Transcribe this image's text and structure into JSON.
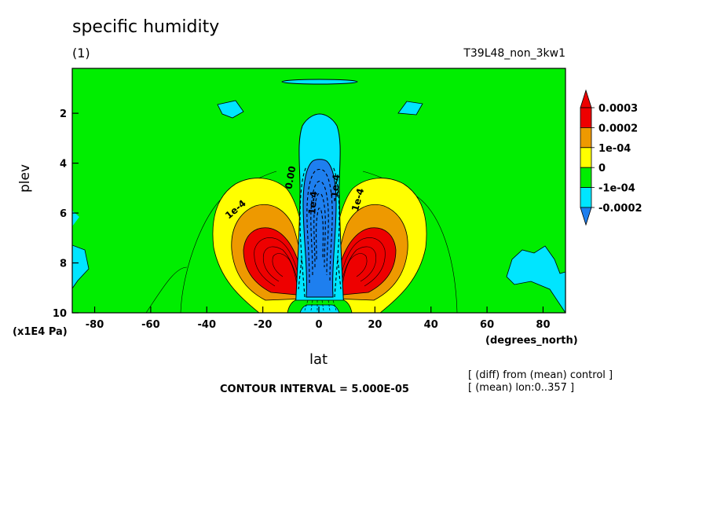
{
  "header": {
    "title": "specific humidity",
    "subtitle": "(1)",
    "run": "T39L48_non_3kw1"
  },
  "footer": {
    "contour_interval": "CONTOUR INTERVAL = 5.000E-05",
    "note1": "[ (diff) from (mean) control ]",
    "note2": "[ (mean) lon:0..357 ]"
  },
  "colors": {
    "red": "#ee0000",
    "orange": "#ee9900",
    "yellow": "#ffff00",
    "green": "#00ee00",
    "cyan": "#00e5ff",
    "blue": "#1e7fef"
  },
  "chart_data": {
    "type": "heatmap",
    "title": "specific humidity",
    "xlabel": "lat",
    "xunits": "(degrees_north)",
    "ylabel": "plev",
    "yunits": "(x1E4 Pa)",
    "xlim": [
      -88,
      88
    ],
    "ylim": [
      10,
      0.2
    ],
    "x_ticks": [
      -80,
      -60,
      -40,
      -20,
      0,
      20,
      40,
      60,
      80
    ],
    "y_ticks": [
      2,
      4,
      6,
      8,
      10
    ],
    "contour_interval": 5e-05,
    "colorbar": {
      "labels": [
        "0.0003",
        "0.0002",
        "1e-04",
        "0",
        "-1e-04",
        "-0.0002"
      ],
      "bins": [
        {
          "color": "#ee0000",
          "range": [
            0.0003,
            null
          ]
        },
        {
          "color": "#ee0000",
          "range": [
            0.0002,
            0.0003
          ]
        },
        {
          "color": "#ee9900",
          "range": [
            0.0001,
            0.0002
          ]
        },
        {
          "color": "#ffff00",
          "range": [
            0.0,
            0.0001
          ]
        },
        {
          "color": "#00ee00",
          "range": [
            -0.0001,
            0.0
          ]
        },
        {
          "color": "#00e5ff",
          "range": [
            -0.0002,
            -0.0001
          ]
        },
        {
          "color": "#1e7fef",
          "range": [
            null,
            -0.0002
          ]
        }
      ]
    },
    "contour_labels": [
      "1e-4",
      "1e-4",
      "0.00",
      "1e-4",
      "-1e-4"
    ],
    "features": [
      {
        "lat": -17,
        "plev": 8.3,
        "value": 0.0003
      },
      {
        "lat": 17,
        "plev": 8.3,
        "value": 0.0003
      },
      {
        "lat": 0,
        "plev": 6.5,
        "value": -0.0002
      }
    ]
  }
}
